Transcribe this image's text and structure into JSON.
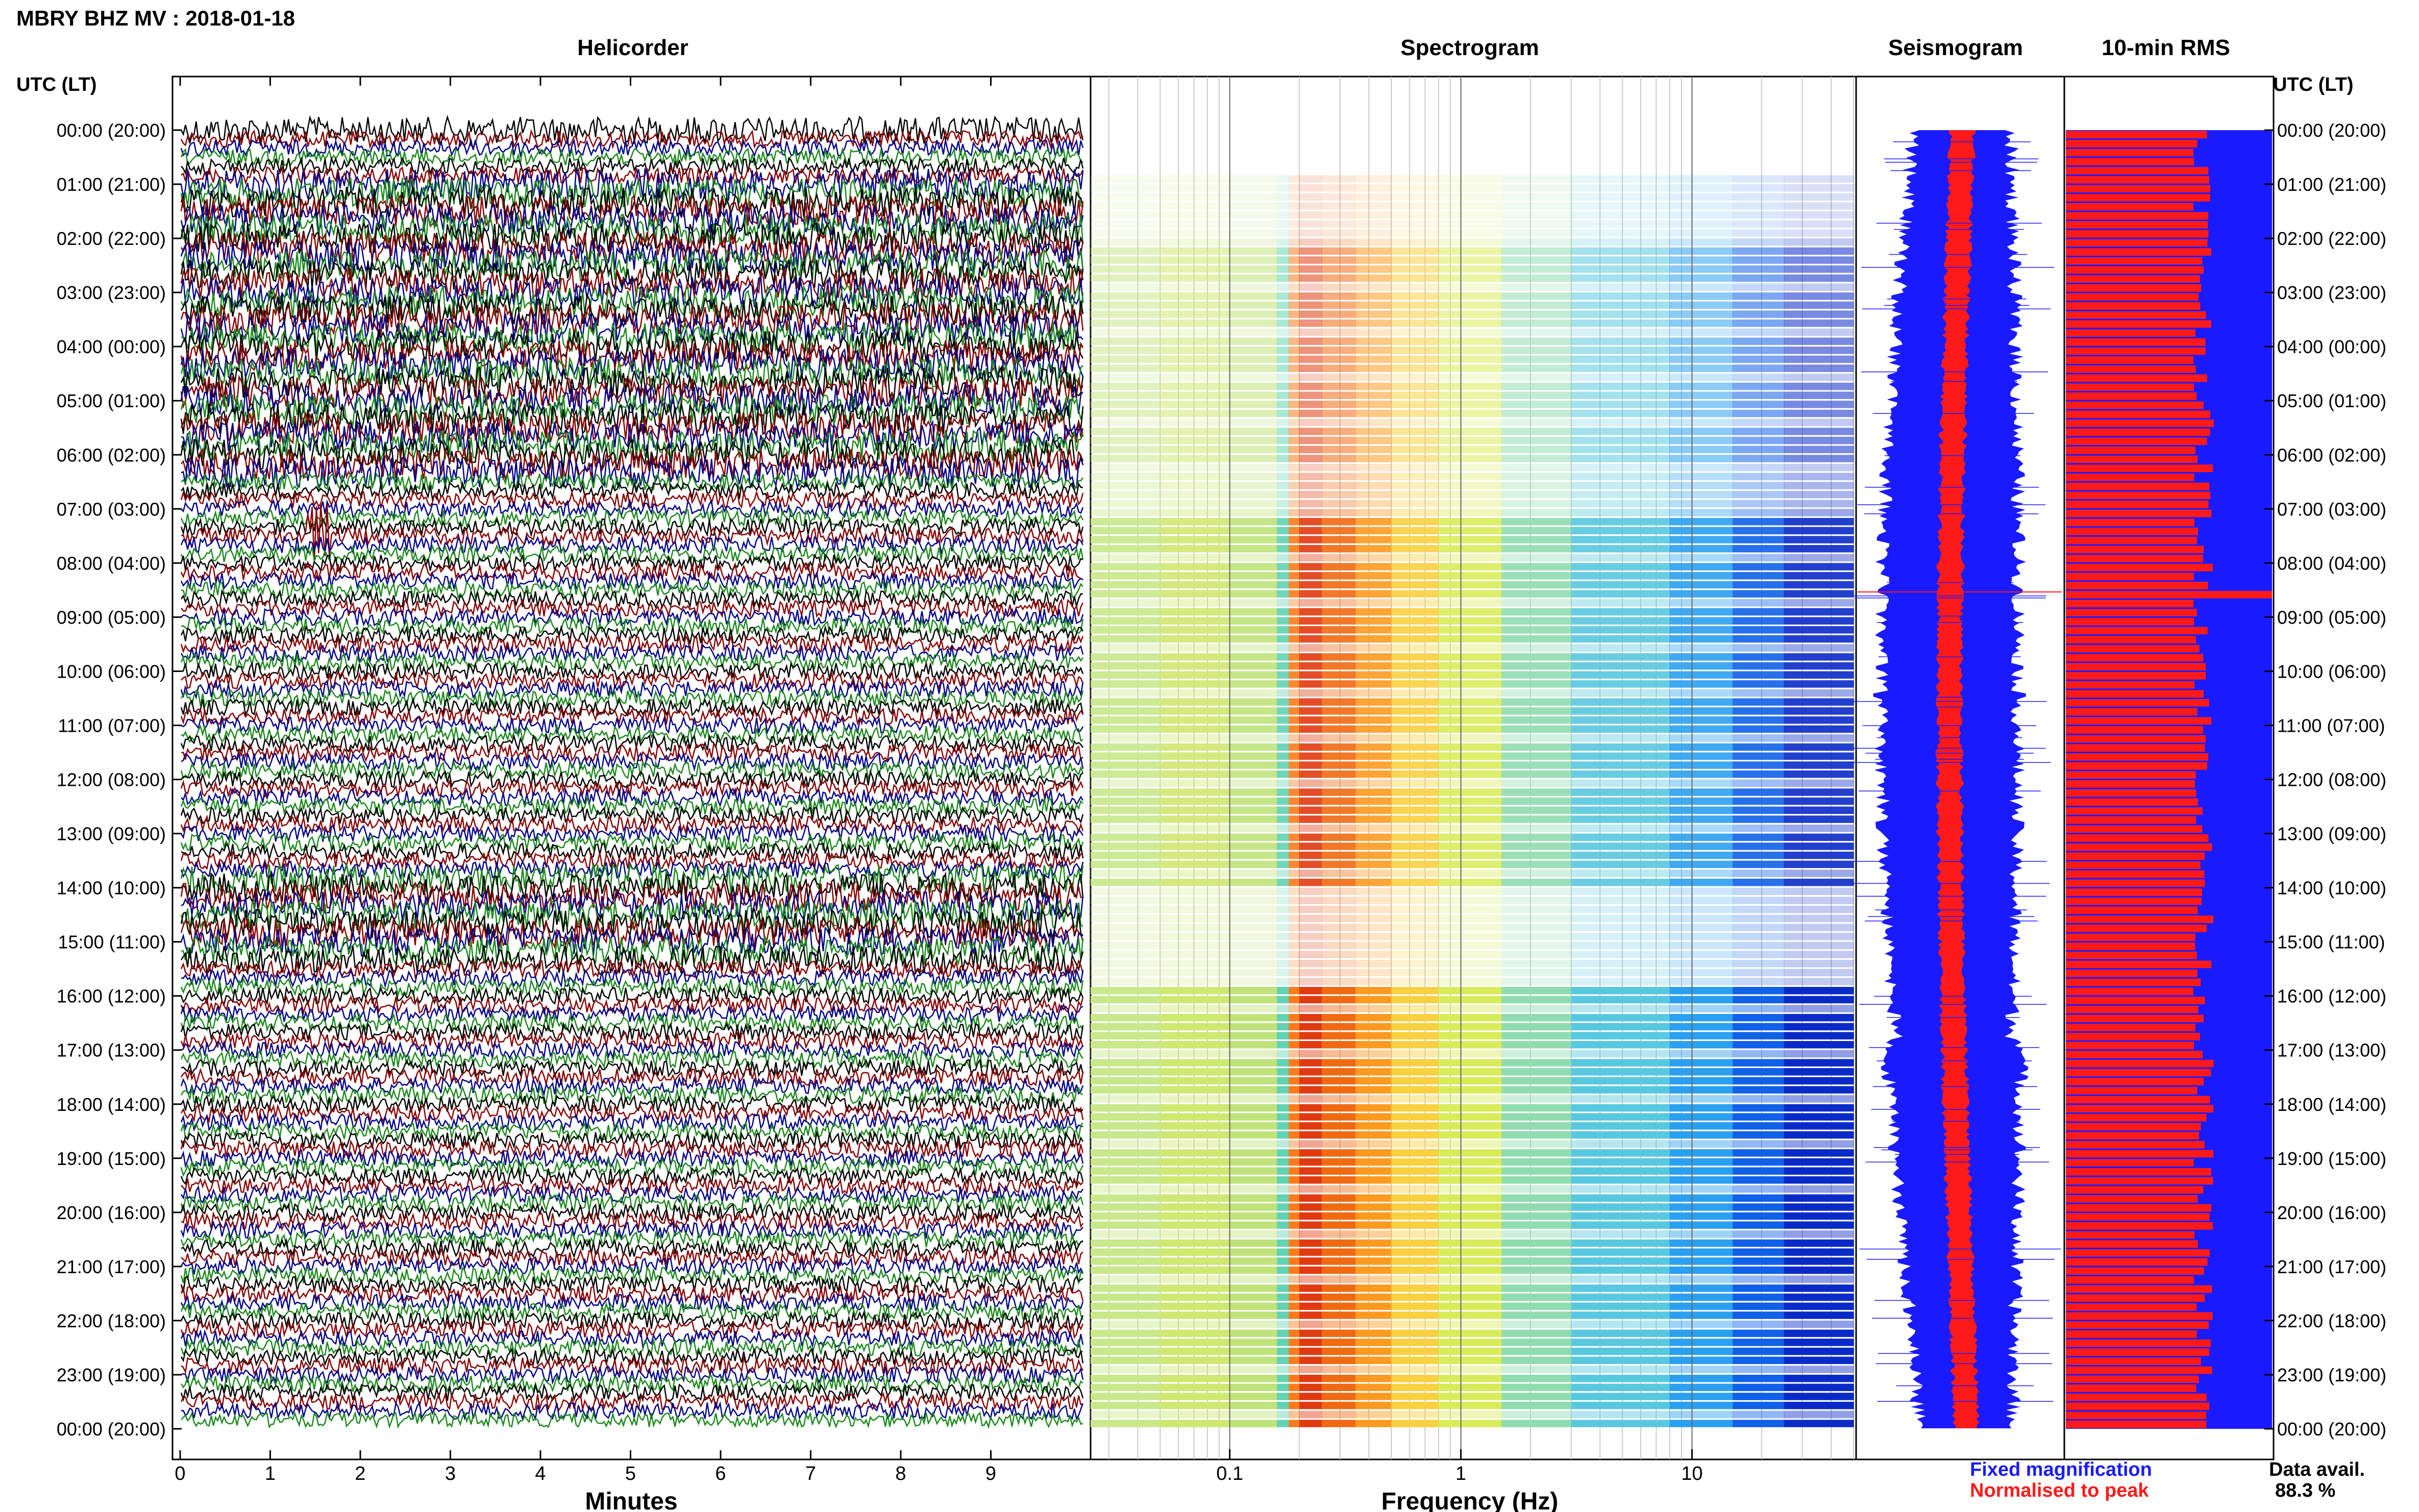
{
  "header": {
    "title": "MBRY BHZ MV : 2018-01-18"
  },
  "panels": {
    "helicorder": "Helicorder",
    "spectrogram": "Spectrogram",
    "seismogram": "Seismogram",
    "rms": "10-min RMS"
  },
  "axis": {
    "time_label_left": "UTC (LT)",
    "time_label_right": "UTC (LT)",
    "minutes_label": "Minutes",
    "frequency_label": "Frequency (Hz)"
  },
  "time_ticks": [
    "00:00 (20:00)",
    "01:00 (21:00)",
    "02:00 (22:00)",
    "03:00 (23:00)",
    "04:00 (00:00)",
    "05:00 (01:00)",
    "06:00 (02:00)",
    "07:00 (03:00)",
    "08:00 (04:00)",
    "09:00 (05:00)",
    "10:00 (06:00)",
    "11:00 (07:00)",
    "12:00 (08:00)",
    "13:00 (09:00)",
    "14:00 (10:00)",
    "15:00 (11:00)",
    "16:00 (12:00)",
    "17:00 (13:00)",
    "18:00 (14:00)",
    "19:00 (15:00)",
    "20:00 (16:00)",
    "21:00 (17:00)",
    "22:00 (18:00)",
    "23:00 (19:00)",
    "00:00 (20:00)"
  ],
  "minute_ticks": [
    "0",
    "1",
    "2",
    "3",
    "4",
    "5",
    "6",
    "7",
    "8",
    "9"
  ],
  "frequency_ticks": [
    "0.1",
    "1",
    "10"
  ],
  "legend": {
    "fixed": "Fixed magnification",
    "normalised": "Normalised to peak",
    "fixed_color": "#1a1aff",
    "normalised_color": "#ff1a1a"
  },
  "availability": {
    "label": "Data avail.",
    "value": "88.3 %"
  },
  "colors": {
    "trace_black": "#000000",
    "trace_red": "#8b0000",
    "trace_blue": "#00008b",
    "trace_green": "#1a8a1a",
    "rms_bar": "#ff1a1a",
    "rms_fill": "#1a1aff",
    "seis_blue": "#1a1aff",
    "seis_red": "#ff1a1a"
  },
  "chart_data": [
    {
      "type": "line",
      "title": "Helicorder",
      "xlabel": "Minutes",
      "ylabel": "UTC (LT)",
      "xlim": [
        0,
        10
      ],
      "x_ticks": [
        0,
        1,
        2,
        3,
        4,
        5,
        6,
        7,
        8,
        9
      ],
      "y_ticks": [
        "00:00",
        "01:00",
        "02:00",
        "03:00",
        "04:00",
        "05:00",
        "06:00",
        "07:00",
        "08:00",
        "09:00",
        "10:00",
        "11:00",
        "12:00",
        "13:00",
        "14:00",
        "15:00",
        "16:00",
        "17:00",
        "18:00",
        "19:00",
        "20:00",
        "21:00",
        "22:00",
        "23:00",
        "00:00"
      ],
      "rows": 144,
      "trace_colors_cycle": [
        "black",
        "red",
        "blue",
        "green"
      ],
      "notes": "noise traces, 10 minutes per line; larger amplitudes 01:00-06:30 and 13:45-15:30; green spike near 07:30 at ~1.5 min"
    },
    {
      "type": "heatmap",
      "title": "Spectrogram",
      "xlabel": "Frequency (Hz)",
      "x_scale": "log",
      "x_ticks": [
        0.1,
        1,
        10
      ],
      "xlim": [
        0.025,
        50
      ],
      "peak_band_hz": [
        0.18,
        0.5
      ]
    },
    {
      "type": "area",
      "title": "Seismogram",
      "series": [
        {
          "name": "Fixed magnification",
          "color": "#1a1aff"
        },
        {
          "name": "Normalised to peak",
          "color": "#ff1a1a"
        }
      ]
    },
    {
      "type": "bar",
      "title": "10-min RMS",
      "orientation": "horizontal",
      "rows": 144,
      "peak_time": "08:30"
    }
  ]
}
